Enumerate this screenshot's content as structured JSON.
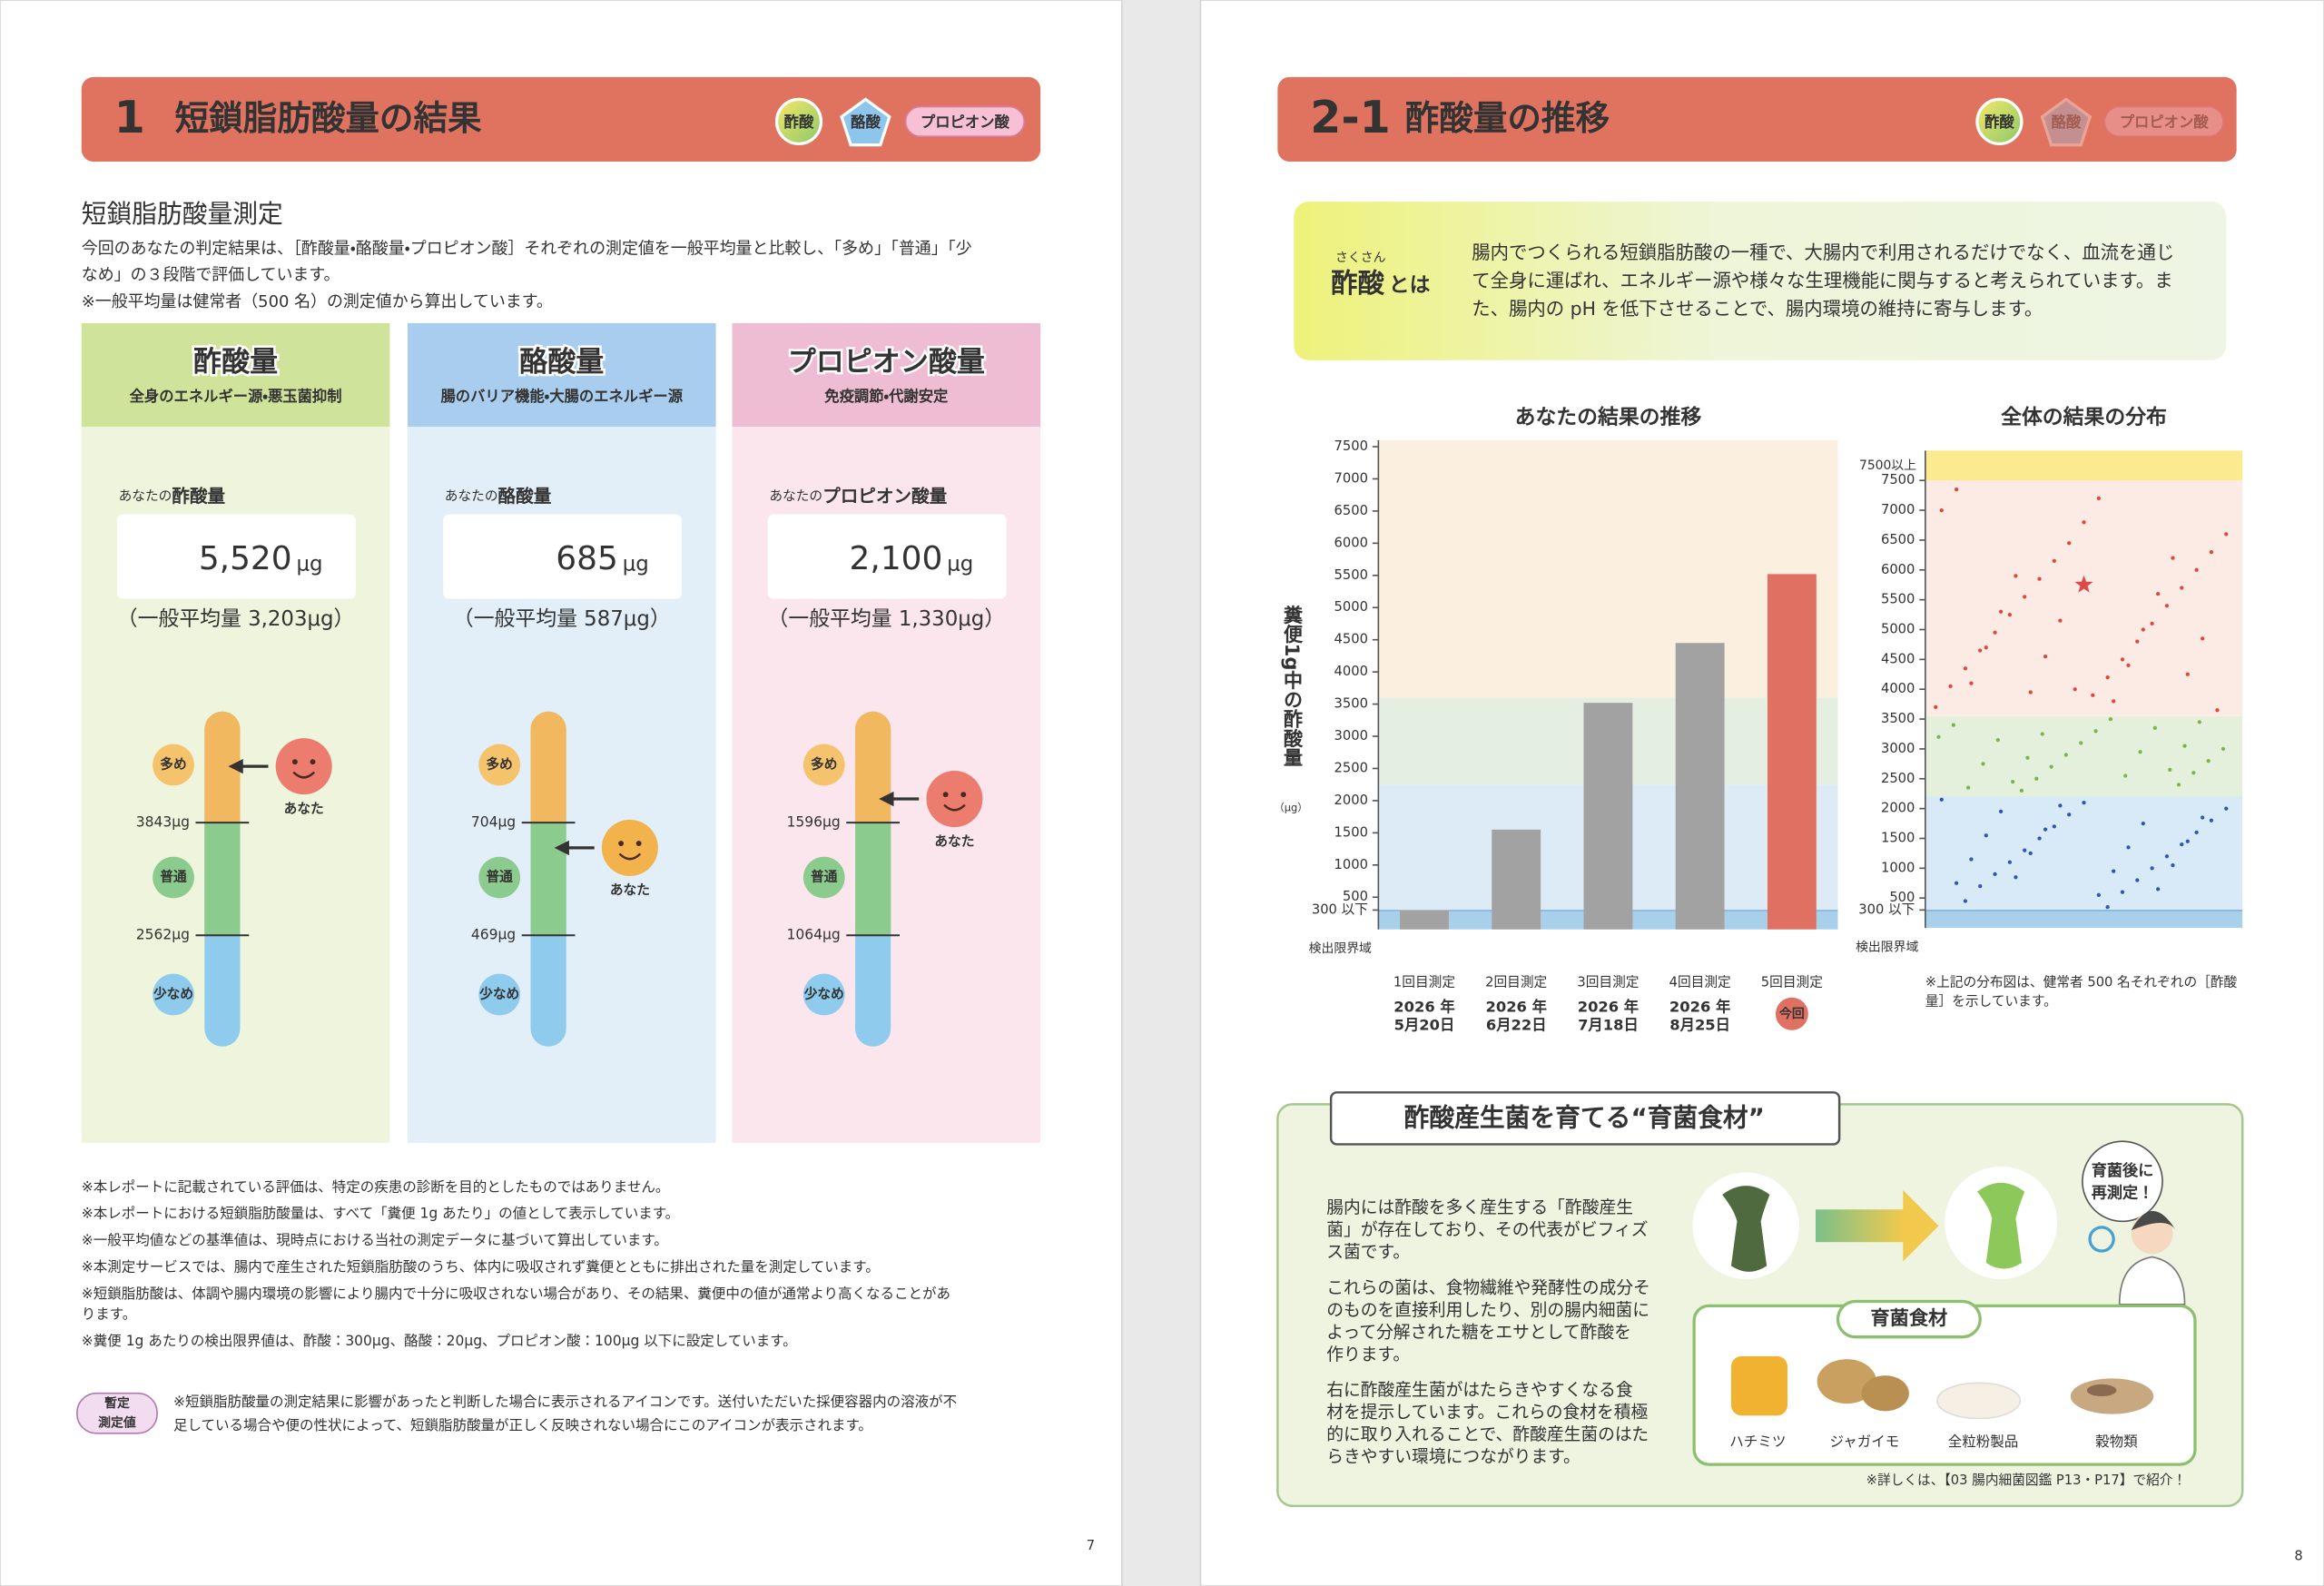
{
  "left_page": {
    "header": {
      "number": "1",
      "title": "短鎖脂肪酸量の結果",
      "badges": [
        "酢酸",
        "酪酸",
        "プロピオン酸"
      ]
    },
    "section_title": "短鎖脂肪酸量測定",
    "intro": [
      "今回のあなたの判定結果は、［酢酸量・酪酸量・プロピオン酸］それぞれの測定値を一般平均量と比較し、「多め」「普通」「少",
      "なめ」の３段階で評価しています。",
      "※一般平均量は健常者（500 名）の測定値から算出しています。"
    ],
    "cards": [
      {
        "title": "酢酸量",
        "subtitle": "全身のエネルギー源・悪玉菌抑制",
        "label_prefix": "あなたの",
        "label": "酢酸量",
        "value": "5,520",
        "unit": "μg",
        "average": "（一般平均量 3,203μg）",
        "levels": [
          "多め",
          "普通",
          "少なめ"
        ],
        "thresholds": [
          "3843μg",
          "2562μg"
        ],
        "marker": "あなた"
      },
      {
        "title": "酪酸量",
        "subtitle": "腸のバリア機能・大腸のエネルギー源",
        "label_prefix": "あなたの",
        "label": "酪酸量",
        "value": "685",
        "unit": "μg",
        "average": "（一般平均量 587μg）",
        "levels": [
          "多め",
          "普通",
          "少なめ"
        ],
        "thresholds": [
          "704μg",
          "469μg"
        ],
        "marker": "あなた"
      },
      {
        "title": "プロピオン酸量",
        "subtitle": "免疫調節・代謝安定",
        "label_prefix": "あなたの",
        "label": "プロピオン酸量",
        "value": "2,100",
        "unit": "μg",
        "average": "（一般平均量 1,330μg）",
        "levels": [
          "多め",
          "普通",
          "少なめ"
        ],
        "thresholds": [
          "1596μg",
          "1064μg"
        ],
        "marker": "あなた"
      }
    ],
    "notes": [
      [
        "※本レポートに記載されている評価は、特定の疾患の診断を目的としたものではありません。"
      ],
      [
        "※本レポートにおける短鎖脂肪酸量は、すべて「糞便 1g あたり」の値として表示しています。"
      ],
      [
        "※一般平均値などの基準値は、現時点における当社の測定データに基づいて算出しています。"
      ],
      [
        "※本測定サービスでは、腸内で産生された短鎖脂肪酸のうち、体内に吸収されず糞便とともに排出された量を測定しています。"
      ],
      [
        "※短鎖脂肪酸は、体調や腸内環境の影響により腸内で十分に吸収されない場合があり、その結果、糞便中の値が通常より高くなることがあ",
        "ります。"
      ],
      [
        "※糞便 1g あたりの検出限界値は、酢酸：300μg、酪酸：20μg、プロピオン酸：100μg 以下に設定しています。"
      ]
    ],
    "provisional": {
      "badge": [
        "暫定",
        "測定値"
      ],
      "text": [
        "※短鎖脂肪酸量の測定結果に影響があったと判断した場合に表示されるアイコンです。送付いただいた採便容器内の溶液が不",
        "足している場合や便の性状によって、短鎖脂肪酸量が正しく反映されない場合にこのアイコンが表示されます。"
      ]
    },
    "page_number": "7"
  },
  "right_page": {
    "header": {
      "number": "2-1",
      "title": "酢酸量の推移",
      "badges": [
        "酢酸",
        "酪酸",
        "プロピオン酸"
      ]
    },
    "definition": {
      "ruby": "さくさん",
      "term": "酢酸",
      "suffix": "とは",
      "text": [
        "腸内でつくられる短鎖脂肪酸の一種で、大腸内で利用されるだけでなく、血流を通じ",
        "て全身に運ばれ、エネルギー源や様々な生理機能に関与すると考えられています。ま",
        "た、腸内の pH を低下させることで、腸内環境の維持に寄与します。"
      ]
    },
    "feature": {
      "title": "酢酸産生菌を育てる“育菌食材”",
      "paragraphs": [
        [
          "腸内には酢酸を多く産生する「酢酸産生",
          "菌」が存在しており、その代表がビフィズ",
          "ス菌です。"
        ],
        [
          "これらの菌は、食物繊維や発酵性の成分そ",
          "のものを直接利用したり、別の腸内細菌に",
          "よって分解された糖をエサとして酢酸を",
          "作ります。"
        ],
        [
          "右に酢酸産生菌がはたらきやすくなる食",
          "材を提示しています。これらの食材を積極",
          "的に取り入れることで、酢酸産生菌のはた",
          "らきやすい環境につながります。"
        ]
      ],
      "callout": [
        "育菌後に",
        "再測定！"
      ],
      "food_title": "育菌食材",
      "foods": [
        "ハチミツ",
        "ジャガイモ",
        "全粒粉製品",
        "穀物類"
      ],
      "footnote": "※詳しくは、【03 腸内細菌図鑑 P13・P17】で紹介！"
    },
    "page_number": "8"
  },
  "chart_data": [
    {
      "type": "bar",
      "title": "あなたの結果の推移",
      "y_label": "糞便1g中の酢酸量",
      "y_unit": "（μg）",
      "categories": [
        "1回目測定",
        "2回目測定",
        "3回目測定",
        "4回目測定",
        "5回目測定"
      ],
      "dates": [
        [
          "2026 年",
          "5月20日"
        ],
        [
          "2026 年",
          "6月22日"
        ],
        [
          "2026 年",
          "7月18日"
        ],
        [
          "2026 年",
          "8月25日"
        ],
        null
      ],
      "current_label": "今回",
      "values": [
        300,
        1550,
        3520,
        4450,
        5520
      ],
      "colors": [
        "#a3a2a2",
        "#a3a2a2",
        "#a3a2a2",
        "#a3a2a2",
        "#e07062"
      ],
      "ylim": [
        0,
        7600
      ],
      "yticks": [
        {
          "value": 300,
          "label": "300 以下"
        },
        500,
        1000,
        1500,
        2000,
        2500,
        3000,
        3500,
        4000,
        4500,
        5000,
        5500,
        6000,
        6500,
        7000,
        7500
      ],
      "bands": [
        {
          "from": 0,
          "to": 300,
          "color": "#a9d0ea",
          "label": "検出限界域"
        },
        {
          "from": 300,
          "to": 2250,
          "color": "#ddebf6"
        },
        {
          "from": 2250,
          "to": 3600,
          "color": "#e4efe1"
        },
        {
          "from": 3600,
          "to": 7600,
          "color": "#fbefdf"
        }
      ]
    },
    {
      "type": "scatter",
      "title": "全体の結果の分布",
      "note": [
        "※上記の分布図は、健常者 500 名それぞれの［酢酸",
        "量］を示しています。"
      ],
      "ylim": [
        0,
        8000
      ],
      "yticks": [
        {
          "value": 300,
          "label": "300 以下"
        },
        500,
        1000,
        1500,
        2000,
        2500,
        3000,
        3500,
        4000,
        4500,
        5000,
        5500,
        6000,
        6500,
        7000,
        7500
      ],
      "bands": [
        {
          "from": 0,
          "to": 300,
          "color": "#a9d0ea",
          "label": "検出限界域"
        },
        {
          "from": 300,
          "to": 2200,
          "color": "#d8e9f7"
        },
        {
          "from": 2200,
          "to": 3550,
          "color": "#e4f0dc"
        },
        {
          "from": 3550,
          "to": 7500,
          "color": "#fcebe5"
        },
        {
          "from": 7500,
          "to": 8000,
          "color": "#fbeb8e",
          "label": "7500以上"
        }
      ],
      "series": [
        {
          "color": "#e0463c",
          "values": [
            3700,
            3900,
            4050,
            4200,
            4350,
            4500,
            4650,
            4800,
            4950,
            5100,
            5250,
            5400,
            5550,
            5700,
            5850,
            6000,
            6150,
            6300,
            6450,
            6600,
            6800,
            7000,
            7200,
            7350,
            3800,
            4100,
            4400,
            4700,
            5000,
            5300,
            5600,
            5900,
            6200,
            3950,
            4250,
            4550,
            4850,
            5150,
            3650,
            4000
          ]
        },
        {
          "color": "#7cb548",
          "values": [
            2300,
            2400,
            2500,
            2600,
            2700,
            2800,
            2900,
            3000,
            3100,
            3200,
            3300,
            3400,
            3500,
            2350,
            2550,
            2750,
            2950,
            3150,
            3350,
            2450,
            2650,
            2850,
            3050,
            3250,
            3450
          ]
        },
        {
          "color": "#2f56b0",
          "values": [
            350,
            450,
            600,
            700,
            800,
            900,
            1000,
            1100,
            1200,
            1300,
            1400,
            1500,
            1600,
            1700,
            1800,
            1900,
            2000,
            2100,
            2150,
            550,
            750,
            950,
            1150,
            1350,
            1550,
            1750,
            1950,
            650,
            850,
            1050,
            1250,
            1450,
            1650,
            1850,
            2050
          ]
        },
        {
          "color": "#e04848",
          "marker": "star",
          "values": [
            5750
          ]
        }
      ]
    }
  ]
}
